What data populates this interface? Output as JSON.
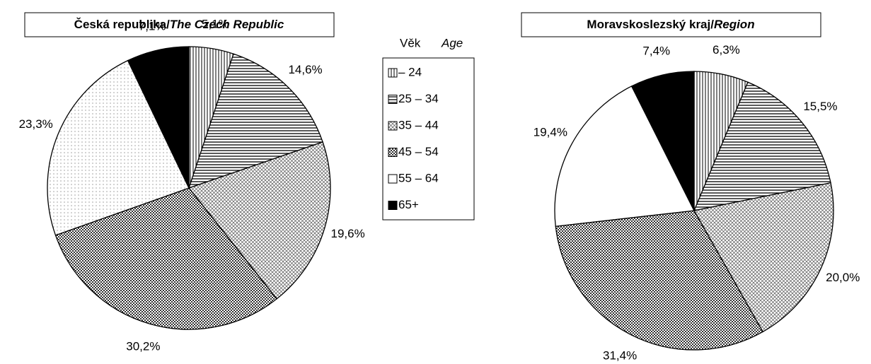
{
  "legend": {
    "title": "Věk",
    "title_en": "Age",
    "categories": [
      "– 24",
      "25 – 34",
      "35 – 44",
      "45 – 54",
      "55 – 64",
      "65+"
    ],
    "patterns": [
      "vertical",
      "horizontal",
      "fine",
      "check",
      "white",
      "black"
    ]
  },
  "chart_data": [
    {
      "type": "pie",
      "title": "Česká republika/",
      "title_en": "The Czech Republic",
      "values": [
        5.1,
        14.6,
        19.6,
        30.2,
        23.3,
        7.1
      ],
      "value_labels": [
        "5,1%",
        "14,6%",
        "19,6%",
        "30,2%",
        "23,3%",
        "7,1%"
      ],
      "patterns": [
        "vertical",
        "horizontal",
        "fine",
        "check",
        "dots",
        "black"
      ]
    },
    {
      "type": "pie",
      "title": "Moravskoslezský kraj/",
      "title_en": "Region",
      "values": [
        6.3,
        15.5,
        20.0,
        31.4,
        19.4,
        7.4
      ],
      "value_labels": [
        "6,3%",
        "15,5%",
        "20,0%",
        "31,4%",
        "19,4%",
        "7,4%"
      ],
      "patterns": [
        "vertical",
        "horizontal",
        "fine",
        "check",
        "white",
        "black"
      ]
    }
  ]
}
